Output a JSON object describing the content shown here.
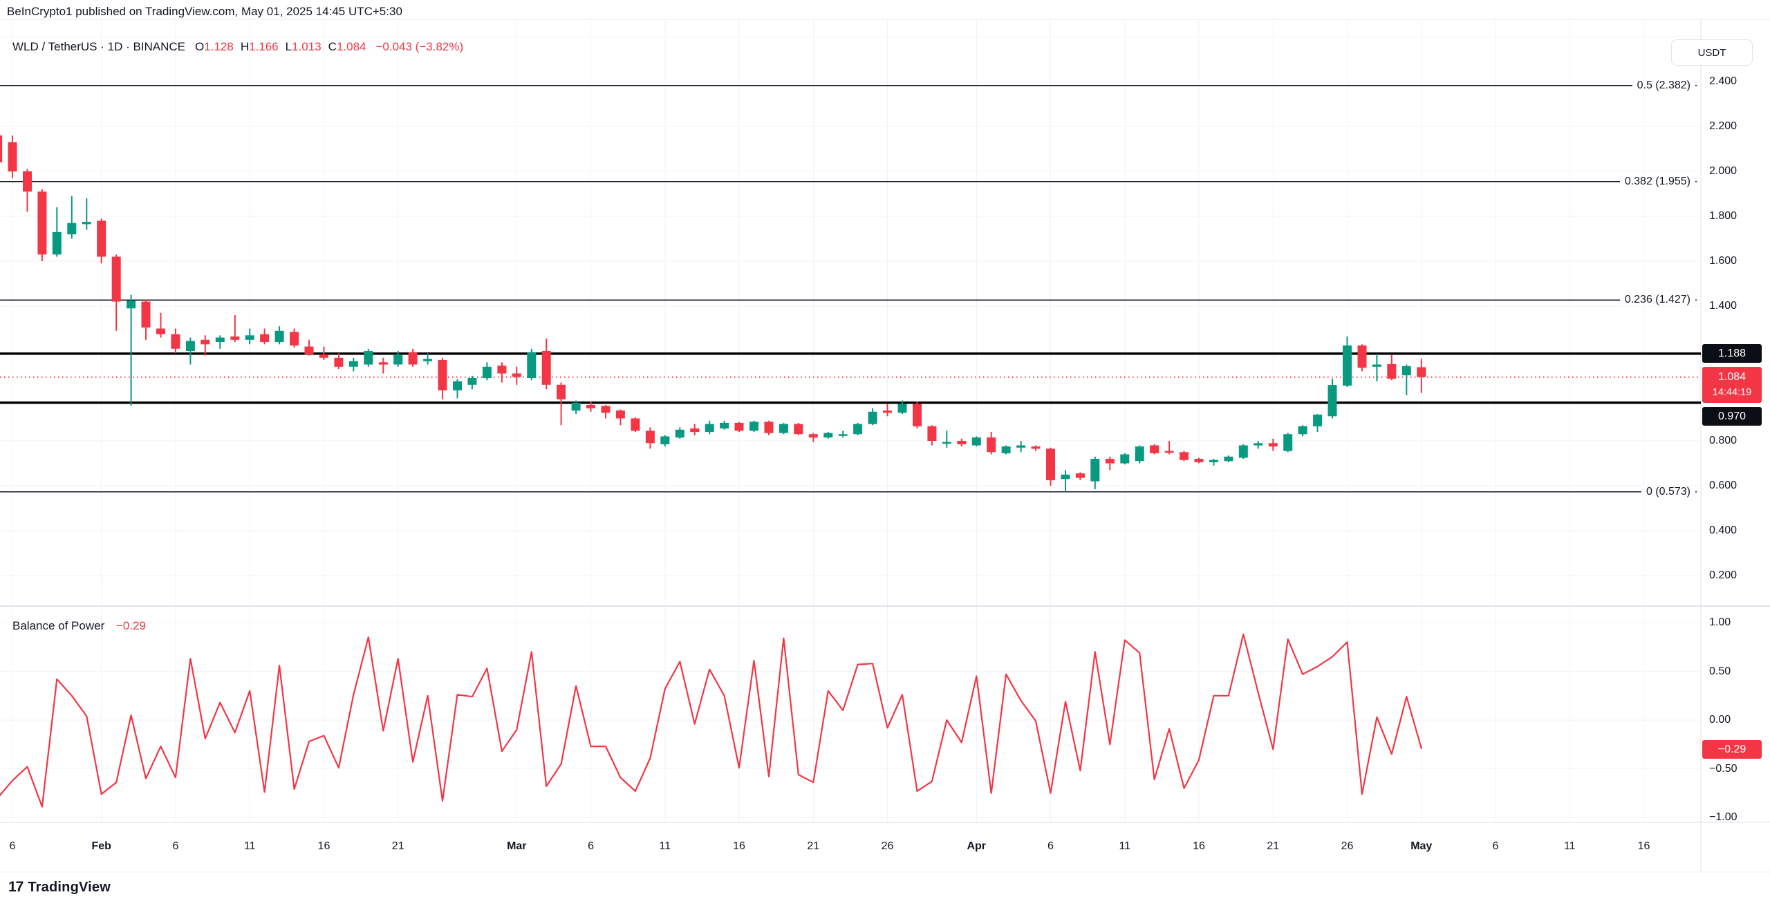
{
  "header": {
    "attribution": "BeInCrypto1 published on TradingView.com, May 01, 2025 14:45 UTC+5:30"
  },
  "legend": {
    "title": "WLD / TetherUS · 1D · BINANCE",
    "o_label": "O",
    "o": "1.128",
    "h_label": "H",
    "h": "1.166",
    "l_label": "L",
    "l": "1.013",
    "c_label": "C",
    "c": "1.084",
    "change": "−0.043 (−3.82%)"
  },
  "toolbar": {
    "currency": "USDT"
  },
  "footer": {
    "brand": "TradingView",
    "logo_glyph": "17"
  },
  "chart_data": {
    "price_pane": {
      "type": "candlestick",
      "symbol": "WLD/TetherUS",
      "interval": "1D",
      "exchange": "BINANCE",
      "up_color": "#089981",
      "down_color": "#f23645",
      "start_k": -1,
      "candles": [
        [
          2.16,
          2.17,
          2.02,
          2.04
        ],
        [
          2.13,
          2.16,
          1.97,
          2.0
        ],
        [
          2.0,
          2.01,
          1.82,
          1.91
        ],
        [
          1.91,
          1.92,
          1.6,
          1.63
        ],
        [
          1.63,
          1.84,
          1.62,
          1.73
        ],
        [
          1.72,
          1.89,
          1.7,
          1.77
        ],
        [
          1.765,
          1.88,
          1.74,
          1.775
        ],
        [
          1.78,
          1.79,
          1.59,
          1.62
        ],
        [
          1.62,
          1.63,
          1.29,
          1.42
        ],
        [
          1.39,
          1.45,
          0.957,
          1.425
        ],
        [
          1.42,
          1.43,
          1.25,
          1.305
        ],
        [
          1.3,
          1.37,
          1.26,
          1.275
        ],
        [
          1.275,
          1.3,
          1.19,
          1.21
        ],
        [
          1.2,
          1.26,
          1.14,
          1.245
        ],
        [
          1.25,
          1.27,
          1.18,
          1.23
        ],
        [
          1.24,
          1.27,
          1.21,
          1.26
        ],
        [
          1.265,
          1.36,
          1.24,
          1.25
        ],
        [
          1.25,
          1.3,
          1.23,
          1.27
        ],
        [
          1.275,
          1.3,
          1.23,
          1.24
        ],
        [
          1.24,
          1.31,
          1.23,
          1.29
        ],
        [
          1.285,
          1.3,
          1.215,
          1.225
        ],
        [
          1.22,
          1.25,
          1.18,
          1.185
        ],
        [
          1.185,
          1.22,
          1.16,
          1.17
        ],
        [
          1.17,
          1.19,
          1.12,
          1.13
        ],
        [
          1.13,
          1.17,
          1.11,
          1.155
        ],
        [
          1.14,
          1.21,
          1.13,
          1.2
        ],
        [
          1.15,
          1.17,
          1.1,
          1.14
        ],
        [
          1.14,
          1.2,
          1.13,
          1.185
        ],
        [
          1.195,
          1.21,
          1.13,
          1.14
        ],
        [
          1.155,
          1.19,
          1.14,
          1.165
        ],
        [
          1.16,
          1.17,
          0.985,
          1.025
        ],
        [
          1.025,
          1.075,
          0.99,
          1.065
        ],
        [
          1.05,
          1.09,
          1.03,
          1.08
        ],
        [
          1.08,
          1.15,
          1.07,
          1.13
        ],
        [
          1.135,
          1.15,
          1.06,
          1.1
        ],
        [
          1.1,
          1.13,
          1.05,
          1.085
        ],
        [
          1.08,
          1.21,
          1.07,
          1.195
        ],
        [
          1.2,
          1.255,
          1.03,
          1.05
        ],
        [
          1.05,
          1.06,
          0.87,
          0.985
        ],
        [
          0.935,
          0.98,
          0.92,
          0.97
        ],
        [
          0.96,
          0.975,
          0.93,
          0.945
        ],
        [
          0.955,
          0.96,
          0.9,
          0.925
        ],
        [
          0.935,
          0.94,
          0.87,
          0.9
        ],
        [
          0.9,
          0.905,
          0.84,
          0.845
        ],
        [
          0.845,
          0.86,
          0.765,
          0.79
        ],
        [
          0.785,
          0.825,
          0.775,
          0.82
        ],
        [
          0.815,
          0.86,
          0.81,
          0.85
        ],
        [
          0.855,
          0.875,
          0.825,
          0.84
        ],
        [
          0.84,
          0.89,
          0.83,
          0.875
        ],
        [
          0.855,
          0.89,
          0.85,
          0.88
        ],
        [
          0.88,
          0.885,
          0.84,
          0.845
        ],
        [
          0.845,
          0.89,
          0.84,
          0.885
        ],
        [
          0.885,
          0.89,
          0.825,
          0.835
        ],
        [
          0.835,
          0.88,
          0.83,
          0.875
        ],
        [
          0.875,
          0.88,
          0.825,
          0.83
        ],
        [
          0.83,
          0.835,
          0.795,
          0.815
        ],
        [
          0.815,
          0.84,
          0.81,
          0.835
        ],
        [
          0.825,
          0.845,
          0.815,
          0.83
        ],
        [
          0.83,
          0.88,
          0.825,
          0.875
        ],
        [
          0.875,
          0.945,
          0.87,
          0.93
        ],
        [
          0.935,
          0.965,
          0.91,
          0.925
        ],
        [
          0.925,
          0.98,
          0.92,
          0.965
        ],
        [
          0.965,
          0.975,
          0.855,
          0.865
        ],
        [
          0.865,
          0.87,
          0.78,
          0.8
        ],
        [
          0.795,
          0.845,
          0.77,
          0.795
        ],
        [
          0.8,
          0.81,
          0.775,
          0.785
        ],
        [
          0.78,
          0.82,
          0.775,
          0.815
        ],
        [
          0.815,
          0.84,
          0.74,
          0.75
        ],
        [
          0.745,
          0.78,
          0.74,
          0.775
        ],
        [
          0.77,
          0.8,
          0.75,
          0.78
        ],
        [
          0.775,
          0.78,
          0.755,
          0.765
        ],
        [
          0.765,
          0.77,
          0.6,
          0.625
        ],
        [
          0.63,
          0.67,
          0.573,
          0.65
        ],
        [
          0.655,
          0.66,
          0.625,
          0.635
        ],
        [
          0.62,
          0.73,
          0.585,
          0.72
        ],
        [
          0.72,
          0.73,
          0.67,
          0.7
        ],
        [
          0.7,
          0.745,
          0.695,
          0.74
        ],
        [
          0.71,
          0.78,
          0.7,
          0.775
        ],
        [
          0.78,
          0.785,
          0.74,
          0.745
        ],
        [
          0.755,
          0.8,
          0.74,
          0.748
        ],
        [
          0.75,
          0.755,
          0.71,
          0.715
        ],
        [
          0.72,
          0.725,
          0.7,
          0.705
        ],
        [
          0.705,
          0.72,
          0.69,
          0.715
        ],
        [
          0.71,
          0.735,
          0.705,
          0.73
        ],
        [
          0.725,
          0.785,
          0.72,
          0.78
        ],
        [
          0.78,
          0.8,
          0.765,
          0.79
        ],
        [
          0.79,
          0.81,
          0.755,
          0.775
        ],
        [
          0.755,
          0.835,
          0.75,
          0.83
        ],
        [
          0.83,
          0.87,
          0.82,
          0.865
        ],
        [
          0.865,
          0.92,
          0.84,
          0.917
        ],
        [
          0.91,
          1.077,
          0.9,
          1.049
        ],
        [
          1.046,
          1.265,
          1.04,
          1.225
        ],
        [
          1.225,
          1.23,
          1.11,
          1.126
        ],
        [
          1.13,
          1.188,
          1.065,
          1.14
        ],
        [
          1.142,
          1.185,
          1.07,
          1.077
        ],
        [
          1.092,
          1.14,
          1.003,
          1.133
        ],
        [
          1.128,
          1.166,
          1.013,
          1.084
        ]
      ],
      "fib_levels": [
        {
          "label": "0.5 (2.382)",
          "price": 2.382
        },
        {
          "label": "0.382 (1.955)",
          "price": 1.955
        },
        {
          "label": "0.236 (1.427)",
          "price": 1.427
        },
        {
          "label": "0 (0.573)",
          "price": 0.573
        }
      ],
      "rays": [
        1.188,
        0.97
      ],
      "current_price": 1.084,
      "grid_prices": [
        2.6,
        2.4,
        2.2,
        2.0,
        1.8,
        1.6,
        1.4,
        0.8,
        0.6,
        0.4,
        0.2
      ],
      "ticks": [
        {
          "label": "2.400",
          "p": 2.4
        },
        {
          "label": "2.200",
          "p": 2.2
        },
        {
          "label": "2.000",
          "p": 2.0
        },
        {
          "label": "1.800",
          "p": 1.8
        },
        {
          "label": "1.600",
          "p": 1.6
        },
        {
          "label": "1.400",
          "p": 1.4
        },
        {
          "label": "0.800",
          "p": 0.8
        },
        {
          "label": "0.600",
          "p": 0.6
        },
        {
          "label": "0.400",
          "p": 0.4
        },
        {
          "label": "0.200",
          "p": 0.2
        }
      ],
      "badges": {
        "upper": "1.188",
        "price": "1.084",
        "time": "14:44:19",
        "lower": "0.970"
      }
    },
    "bop_pane": {
      "type": "line",
      "title": "Balance of Power",
      "value": "−0.29",
      "color": "#f23645",
      "start_k": -1,
      "ylim": [
        -1,
        1
      ],
      "values": [
        -0.8,
        -0.62,
        -0.48,
        -0.89,
        0.42,
        0.25,
        0.04,
        -0.76,
        -0.64,
        0.05,
        -0.6,
        -0.27,
        -0.59,
        0.63,
        -0.19,
        0.18,
        -0.13,
        0.3,
        -0.74,
        0.56,
        -0.71,
        -0.22,
        -0.16,
        -0.49,
        0.26,
        0.85,
        -0.11,
        0.63,
        -0.43,
        0.25,
        -0.83,
        0.26,
        0.24,
        0.53,
        -0.32,
        -0.1,
        0.7,
        -0.68,
        -0.45,
        0.35,
        -0.27,
        -0.27,
        -0.59,
        -0.73,
        -0.39,
        0.32,
        0.6,
        -0.04,
        0.52,
        0.25,
        -0.49,
        0.61,
        -0.58,
        0.84,
        -0.56,
        -0.64,
        0.3,
        0.1,
        0.57,
        0.58,
        -0.08,
        0.26,
        -0.73,
        -0.63,
        0.0,
        -0.23,
        0.45,
        -0.75,
        0.47,
        0.2,
        -0.01,
        -0.75,
        0.19,
        -0.52,
        0.7,
        -0.25,
        0.82,
        0.69,
        -0.61,
        -0.09,
        -0.7,
        -0.41,
        0.25,
        0.25,
        0.88,
        0.28,
        -0.3,
        0.83,
        0.47,
        0.55,
        0.65,
        0.8,
        -0.76,
        0.03,
        -0.35,
        0.24,
        -0.29
      ],
      "ticks": [
        {
          "label": "1.00",
          "v": 1.0
        },
        {
          "label": "0.50",
          "v": 0.5
        },
        {
          "label": "0.00",
          "v": 0.0
        },
        {
          "label": "−0.50",
          "v": -0.5
        },
        {
          "label": "−1.00",
          "v": -1.0
        }
      ],
      "badge": "−0.29"
    },
    "x_ticks": [
      {
        "k": 0,
        "label": "6"
      },
      {
        "k": 6,
        "label": "Feb",
        "bold": true
      },
      {
        "k": 11,
        "label": "6"
      },
      {
        "k": 16,
        "label": "11"
      },
      {
        "k": 21,
        "label": "16"
      },
      {
        "k": 26,
        "label": "21"
      },
      {
        "k": 34,
        "label": "Mar",
        "bold": true
      },
      {
        "k": 39,
        "label": "6"
      },
      {
        "k": 44,
        "label": "11"
      },
      {
        "k": 49,
        "label": "16"
      },
      {
        "k": 54,
        "label": "21"
      },
      {
        "k": 59,
        "label": "26"
      },
      {
        "k": 65,
        "label": "Apr",
        "bold": true
      },
      {
        "k": 70,
        "label": "6"
      },
      {
        "k": 75,
        "label": "11"
      },
      {
        "k": 80,
        "label": "16"
      },
      {
        "k": 85,
        "label": "21"
      },
      {
        "k": 90,
        "label": "26"
      },
      {
        "k": 95,
        "label": "May",
        "bold": true
      },
      {
        "k": 100,
        "label": "6"
      },
      {
        "k": 105,
        "label": "11"
      },
      {
        "k": 110,
        "label": "16"
      }
    ]
  }
}
